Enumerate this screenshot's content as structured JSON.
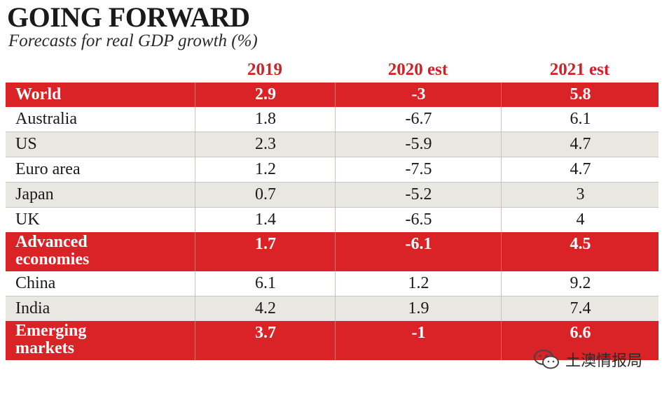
{
  "title": "GOING FORWARD",
  "subtitle": "Forecasts for real GDP growth (%)",
  "columns": [
    "",
    "2019",
    "2020 est",
    "2021 est"
  ],
  "colors": {
    "accent_red": "#d92327",
    "header_red": "#d32027",
    "shade": "#e9e7e2"
  },
  "watermark": {
    "text": "土澳情报局",
    "icon": "wechat-icon"
  },
  "chart_data": {
    "type": "table",
    "title": "GOING FORWARD",
    "subtitle": "Forecasts for real GDP growth (%)",
    "columns": [
      "",
      "2019",
      "2020 est",
      "2021 est"
    ],
    "rows": [
      {
        "label": "World",
        "values": [
          "2.9",
          "-3",
          "5.8"
        ],
        "highlight": true
      },
      {
        "label": "Australia",
        "values": [
          "1.8",
          "-6.7",
          "6.1"
        ],
        "highlight": false
      },
      {
        "label": "US",
        "values": [
          "2.3",
          "-5.9",
          "4.7"
        ],
        "highlight": false
      },
      {
        "label": "Euro area",
        "values": [
          "1.2",
          "-7.5",
          "4.7"
        ],
        "highlight": false
      },
      {
        "label": "Japan",
        "values": [
          "0.7",
          "-5.2",
          "3"
        ],
        "highlight": false
      },
      {
        "label": "UK",
        "values": [
          "1.4",
          "-6.5",
          "4"
        ],
        "highlight": false
      },
      {
        "label": "Advanced economies",
        "label_lines": [
          "Advanced",
          "economies"
        ],
        "values": [
          "1.7",
          "-6.1",
          "4.5"
        ],
        "highlight": true
      },
      {
        "label": "China",
        "values": [
          "6.1",
          "1.2",
          "9.2"
        ],
        "highlight": false
      },
      {
        "label": "India",
        "values": [
          "4.2",
          "1.9",
          "7.4"
        ],
        "highlight": false
      },
      {
        "label": "Emerging markets",
        "label_lines": [
          "Emerging",
          "markets"
        ],
        "values": [
          "3.7",
          "-1",
          "6.6"
        ],
        "highlight": true
      }
    ]
  }
}
